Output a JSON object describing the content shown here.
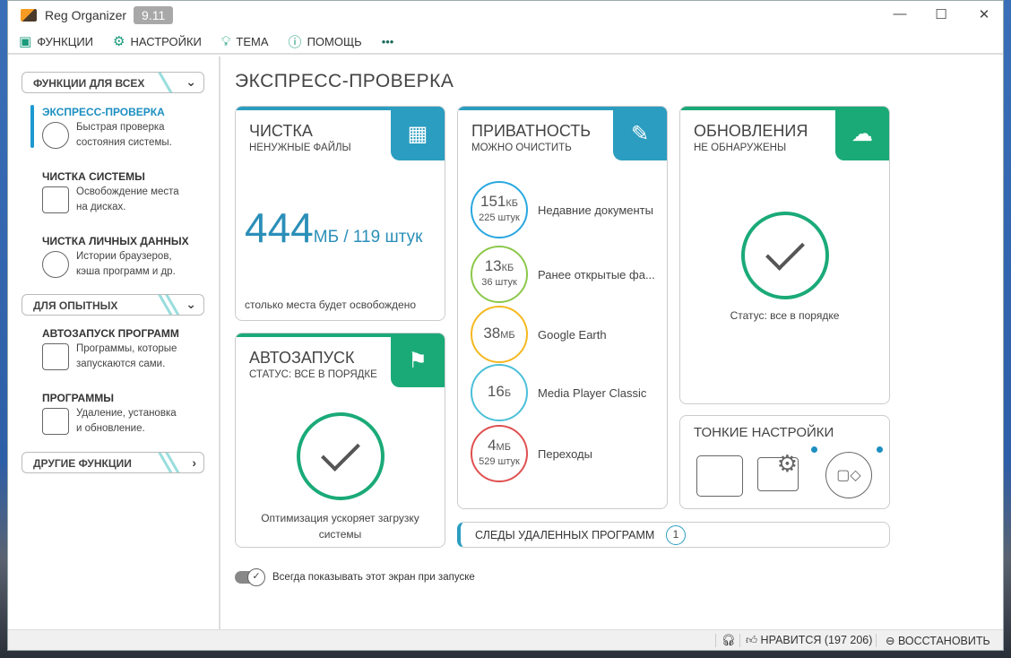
{
  "window": {
    "title": "Reg Organizer",
    "version": "9.11"
  },
  "menu": [
    {
      "label": "ФУНКЦИИ",
      "icon": "toolbox-icon"
    },
    {
      "label": "НАСТРОЙКИ",
      "icon": "gear-icon"
    },
    {
      "label": "ТЕМА",
      "icon": "bulb-icon"
    },
    {
      "label": "ПОМОЩЬ",
      "icon": "help-icon"
    },
    {
      "label": "•••",
      "icon": "more-icon"
    }
  ],
  "sidebar": {
    "groups": [
      "ФУНКЦИИ ДЛЯ ВСЕХ",
      "ДЛЯ ОПЫТНЫХ",
      "ДРУГИЕ ФУНКЦИИ"
    ],
    "items": [
      {
        "title": "ЭКСПРЕСС-ПРОВЕРКА",
        "desc1": "Быстрая проверка",
        "desc2": "состояния системы."
      },
      {
        "title": "ЧИСТКА СИСТЕМЫ",
        "desc1": "Освобождение места",
        "desc2": "на дисках."
      },
      {
        "title": "ЧИСТКА ЛИЧНЫХ ДАННЫХ",
        "desc1": "Истории браузеров,",
        "desc2": "кэша программ и др."
      },
      {
        "title": "АВТОЗАПУСК ПРОГРАММ",
        "desc1": "Программы, которые",
        "desc2": "запускаются сами."
      },
      {
        "title": "ПРОГРАММЫ",
        "desc1": "Удаление, установка",
        "desc2": "и обновление."
      }
    ]
  },
  "page_title": "ЭКСПРЕСС-ПРОВЕРКА",
  "cleaning": {
    "title": "ЧИСТКА",
    "subtitle": "НЕНУЖНЫЕ ФАЙЛЫ",
    "size": "444",
    "unit": "МБ / 119 штук",
    "note": "столько места будет освобождено"
  },
  "autorun": {
    "title": "АВТОЗАПУСК",
    "subtitle": "СТАТУС: ВСЕ В ПОРЯДКЕ",
    "note1": "Оптимизация ускоряет загрузку",
    "note2": "системы"
  },
  "privacy": {
    "title": "ПРИВАТНОСТЬ",
    "subtitle": "МОЖНО ОЧИСТИТЬ",
    "items": [
      {
        "value": "151",
        "unit": "КБ",
        "count": "225 штук",
        "label": "Недавние документы",
        "color": "#2aa8e0"
      },
      {
        "value": "13",
        "unit": "КБ",
        "count": "36 штук",
        "label": "Ранее открытые фа...",
        "color": "#8cc84b"
      },
      {
        "value": "38",
        "unit": "МБ",
        "count": "",
        "label": "Google Earth",
        "color": "#f5b820"
      },
      {
        "value": "16",
        "unit": "Б",
        "count": "",
        "label": "Media Player Classic",
        "color": "#4cc0d8"
      },
      {
        "value": "4",
        "unit": "МБ",
        "count": "529 штук",
        "label": "Переходы",
        "color": "#e05050"
      }
    ]
  },
  "updates": {
    "title": "ОБНОВЛЕНИЯ",
    "subtitle": "НЕ ОБНАРУЖЕНЫ",
    "status": "Статус: все в порядке"
  },
  "tweaks": {
    "title": "ТОНКИЕ НАСТРОЙКИ"
  },
  "traces": {
    "label": "СЛЕДЫ УДАЛЕННЫХ ПРОГРАММ",
    "count": "1"
  },
  "toggle": {
    "label": "Всегда показывать этот экран при запуске",
    "on": true
  },
  "statusbar": {
    "like": "НРАВИТСЯ (197 206)",
    "restore": "ВОССТАНОВИТЬ"
  },
  "colors": {
    "blue": "#2b9dc0",
    "green": "#1aaa78"
  }
}
